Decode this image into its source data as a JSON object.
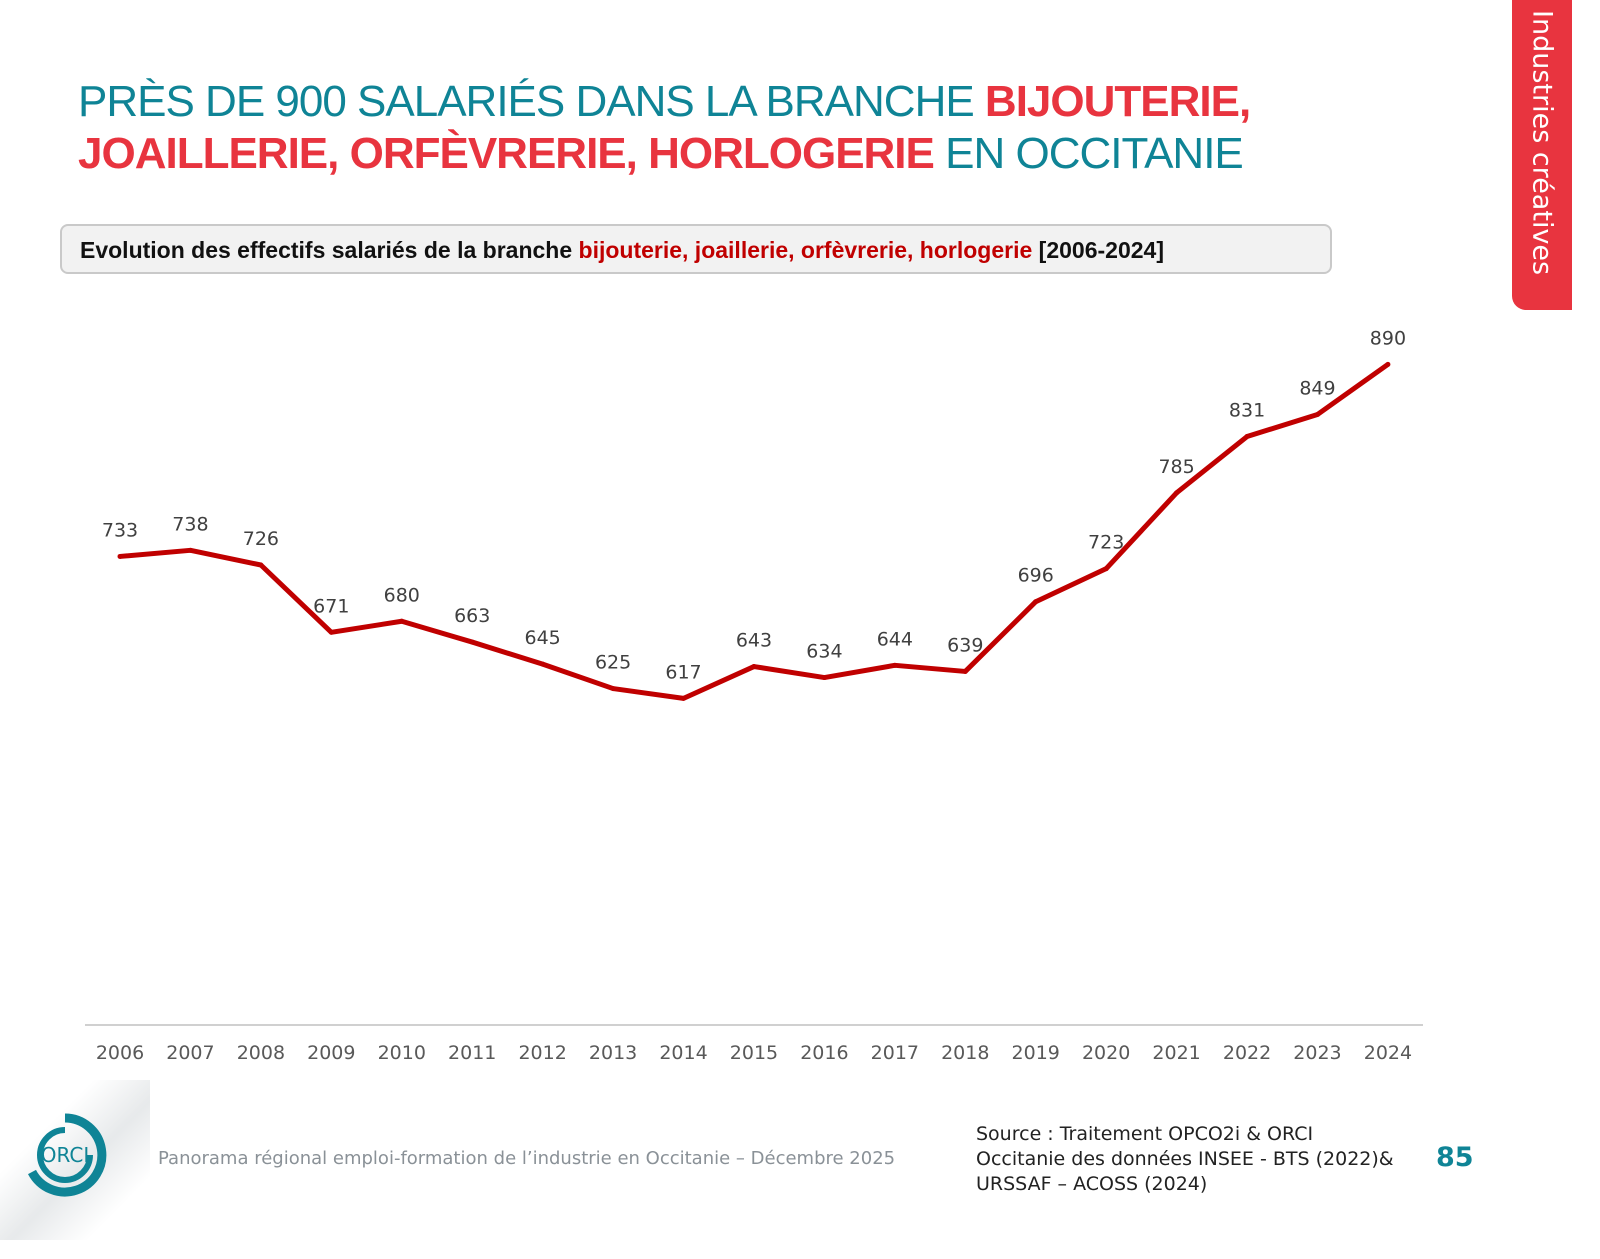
{
  "title": {
    "line1_plain": "PRÈS DE 900 SALARIÉS DANS LA BRANCHE ",
    "line1_highlight": "BIJOUTERIE,",
    "line2_highlight": "JOAILLERIE, ORFÈVRERIE, HORLOGERIE",
    "line2_plain": " EN OCCITANIE"
  },
  "subtitle": {
    "prefix": "Evolution des effectifs salariés de la branche ",
    "highlight": "bijouterie, joaillerie, orfèvrerie, horlogerie",
    "suffix": " [2006-2024]"
  },
  "side_tab": {
    "label": "Industries créatives"
  },
  "footer": {
    "logo_text": "ORCI",
    "panorama": "Panorama régional emploi-formation de l’industrie en Occitanie – Décembre 2025",
    "source_lines": [
      "Source : Traitement OPCO2i & ORCI",
      "Occitanie des données  INSEE - BTS (2022)&",
      "URSSAF – ACOSS (2024)"
    ],
    "page_number": "85"
  },
  "colors": {
    "teal": "#0f8496",
    "red": "#e8343f",
    "line": "#c00000"
  },
  "chart_data": {
    "type": "line",
    "title": "",
    "xlabel": "",
    "ylabel": "",
    "ylim": [
      350,
      950
    ],
    "grid": false,
    "y_axis_visible": false,
    "data_labels": true,
    "categories": [
      "2006",
      "2007",
      "2008",
      "2009",
      "2010",
      "2011",
      "2012",
      "2013",
      "2014",
      "2015",
      "2016",
      "2017",
      "2018",
      "2019",
      "2020",
      "2021",
      "2022",
      "2023",
      "2024"
    ],
    "values": [
      733,
      738,
      726,
      671,
      680,
      663,
      645,
      625,
      617,
      643,
      634,
      644,
      639,
      696,
      723,
      785,
      831,
      849,
      890
    ]
  }
}
